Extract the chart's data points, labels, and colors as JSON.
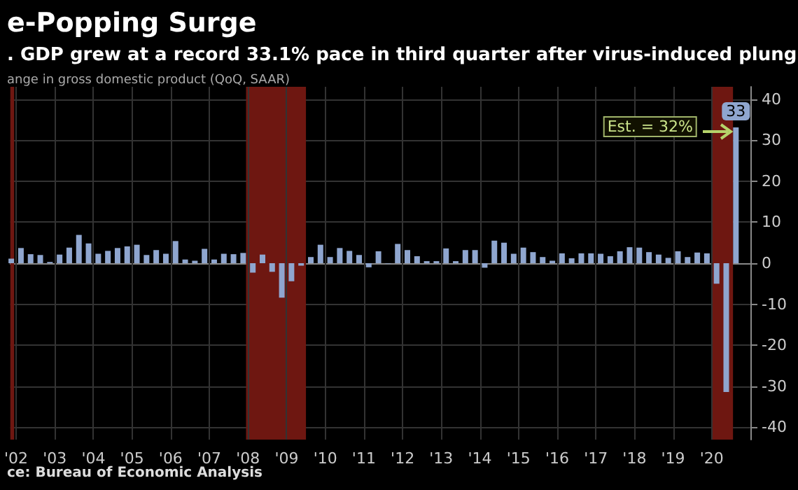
{
  "chart_data": {
    "type": "bar",
    "title": "e-Popping Surge",
    "subtitle": ". GDP grew at a record 33.1% pace in third quarter after virus-induced plung",
    "ylabel": "ange in gross domestic product (QoQ, SAAR)",
    "annotations": [
      "Est. = 32%",
      "ce: Bureau of Economic Analysis"
    ],
    "x": [
      2001.875,
      2002.125,
      2002.375,
      2002.625,
      2002.875,
      2003.125,
      2003.375,
      2003.625,
      2003.875,
      2004.125,
      2004.375,
      2004.625,
      2004.875,
      2005.125,
      2005.375,
      2005.625,
      2005.875,
      2006.125,
      2006.375,
      2006.625,
      2006.875,
      2007.125,
      2007.375,
      2007.625,
      2007.875,
      2008.125,
      2008.375,
      2008.625,
      2008.875,
      2009.125,
      2009.375,
      2009.625,
      2009.875,
      2010.125,
      2010.375,
      2010.625,
      2010.875,
      2011.125,
      2011.375,
      2011.625,
      2011.875,
      2012.125,
      2012.375,
      2012.625,
      2012.875,
      2013.125,
      2013.375,
      2013.625,
      2013.875,
      2014.125,
      2014.375,
      2014.625,
      2014.875,
      2015.125,
      2015.375,
      2015.625,
      2015.875,
      2016.125,
      2016.375,
      2016.625,
      2016.875,
      2017.125,
      2017.375,
      2017.625,
      2017.875,
      2018.125,
      2018.375,
      2018.625,
      2018.875,
      2019.125,
      2019.375,
      2019.625,
      2019.875,
      2020.125,
      2020.375,
      2020.625
    ],
    "values": [
      1.1,
      3.7,
      2.2,
      2.0,
      0.3,
      2.1,
      3.8,
      6.9,
      4.8,
      2.3,
      3.0,
      3.7,
      4.1,
      4.5,
      2.0,
      3.2,
      2.3,
      5.4,
      0.9,
      0.6,
      3.5,
      0.9,
      2.3,
      2.2,
      2.5,
      -2.3,
      2.1,
      -2.1,
      -8.4,
      -4.4,
      -0.6,
      1.5,
      4.5,
      1.5,
      3.7,
      3.0,
      2.0,
      -1.0,
      2.9,
      -0.1,
      4.7,
      3.2,
      1.7,
      0.5,
      0.5,
      3.6,
      0.5,
      3.2,
      3.2,
      -1.1,
      5.5,
      5.0,
      2.3,
      3.8,
      2.7,
      1.5,
      0.6,
      2.4,
      1.2,
      2.4,
      2.4,
      2.3,
      1.7,
      2.9,
      3.9,
      3.8,
      2.7,
      2.1,
      1.3,
      2.9,
      1.5,
      2.6,
      2.4,
      -5.0,
      -31.4,
      33.1
    ],
    "value_labels": [
      null,
      null,
      null,
      null,
      null,
      null,
      null,
      null,
      null,
      null,
      null,
      null,
      null,
      null,
      null,
      null,
      null,
      null,
      null,
      null,
      null,
      null,
      null,
      null,
      null,
      null,
      null,
      null,
      null,
      null,
      null,
      null,
      null,
      null,
      null,
      null,
      null,
      null,
      null,
      null,
      null,
      null,
      null,
      null,
      null,
      null,
      null,
      null,
      null,
      null,
      null,
      null,
      null,
      null,
      null,
      null,
      null,
      null,
      null,
      null,
      null,
      null,
      null,
      null,
      null,
      null,
      null,
      null,
      null,
      null,
      null,
      null,
      null,
      null,
      null,
      "33"
    ],
    "color": "#8fa6cf",
    "bands": [
      {
        "axis": "x",
        "from": 2001.5,
        "to": 2001.95,
        "color": "#6e1711"
      },
      {
        "axis": "x",
        "from": 2007.95,
        "to": 2009.5,
        "color": "#6e1711"
      },
      {
        "axis": "x",
        "from": 2020.0,
        "to": 2020.55,
        "color": "#6e1711"
      }
    ],
    "xlim": [
      2001.85,
      2021.0
    ],
    "xticks": [
      {
        "value": 2002,
        "label": "'02"
      },
      {
        "value": 2003,
        "label": "'03"
      },
      {
        "value": 2004,
        "label": "'04"
      },
      {
        "value": 2005,
        "label": "'05"
      },
      {
        "value": 2006,
        "label": "'06"
      },
      {
        "value": 2007,
        "label": "'07"
      },
      {
        "value": 2008,
        "label": "'08"
      },
      {
        "value": 2009,
        "label": "'09"
      },
      {
        "value": 2010,
        "label": "'10"
      },
      {
        "value": 2011,
        "label": "'11"
      },
      {
        "value": 2012,
        "label": "'12"
      },
      {
        "value": 2013,
        "label": "'13"
      },
      {
        "value": 2014,
        "label": "'14"
      },
      {
        "value": 2015,
        "label": "'15"
      },
      {
        "value": 2016,
        "label": "'16"
      },
      {
        "value": 2017,
        "label": "'17"
      },
      {
        "value": 2018,
        "label": "'18"
      },
      {
        "value": 2019,
        "label": "'19"
      },
      {
        "value": 2020,
        "label": "'20"
      }
    ],
    "ylim": [
      -43,
      43
    ],
    "yticks": [
      -40,
      -30,
      -20,
      -10,
      0,
      10,
      20,
      30,
      40
    ],
    "grid": true
  }
}
